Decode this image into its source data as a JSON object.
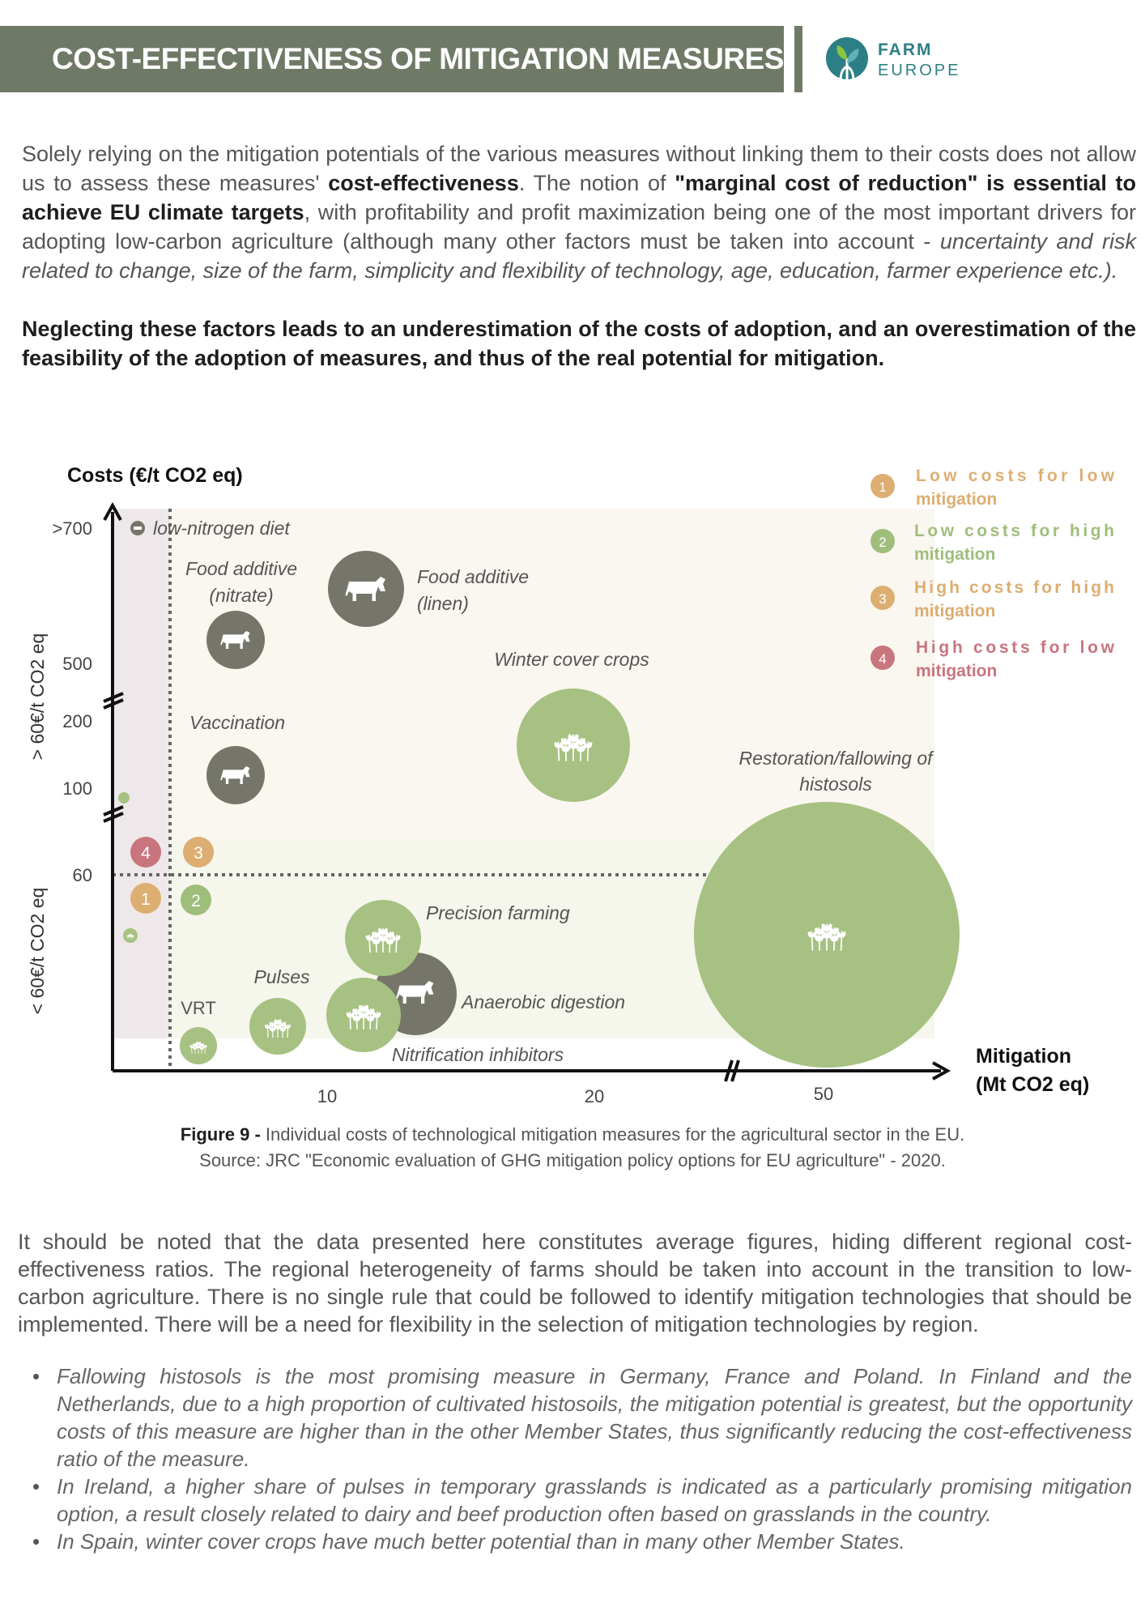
{
  "header": {
    "title": "COST-EFFECTIVENESS OF MITIGATION MEASURES",
    "logo_word1": "FARM",
    "logo_word2": "EUROPE"
  },
  "intro": {
    "p1_a": "Solely relying on the mitigation potentials of the various measures without linking them to their costs does not allow us to assess these measures' ",
    "p1_b": "cost-effectiveness",
    "p1_c": ". The notion of ",
    "p1_d": "\"marginal cost of reduction\" is essential to achieve EU climate targets",
    "p1_e": ", with profitability and profit maximization being one of the most important drivers for adopting low-carbon agriculture (although many other factors must be taken into account - ",
    "p1_f": "uncertainty and risk related to change, size of the farm, simplicity and flexibility of technology, age, education, farmer experience etc.).",
    "p2": "Neglecting these factors leads to an underestimation of the costs of adoption, and an overestimation of the feasibility of the adoption of measures, and thus of the real potential for mitigation."
  },
  "chart_data": {
    "type": "scatter",
    "ylabel": "Costs (€/t CO2 eq)",
    "xlabel_line1": "Mitigation",
    "xlabel_line2": "(Mt CO2 eq)",
    "x_ticks": [
      "10",
      "20",
      "50"
    ],
    "y_ticks": [
      ">700",
      "500",
      "200",
      "100",
      "60"
    ],
    "y_band_high": "> 60€/t CO2 eq",
    "y_band_low": "< 60€/t CO2 eq",
    "legend": [
      {
        "num": "1",
        "line1": "Low costs for low",
        "line2": "mitigation",
        "color": "#dcae72"
      },
      {
        "num": "2",
        "line1": "Low costs for high",
        "line2": "mitigation",
        "color": "#9fbe7c"
      },
      {
        "num": "3",
        "line1": "High costs for high",
        "line2": "mitigation",
        "color": "#dcae72"
      },
      {
        "num": "4",
        "line1": "High costs for low",
        "line2": "mitigation",
        "color": "#c8757d"
      }
    ],
    "measures": [
      {
        "label": "low-nitrogen diet",
        "type": "livestock"
      },
      {
        "label1": "Food additive",
        "label2": "(nitrate)",
        "type": "livestock"
      },
      {
        "label1": "Food additive",
        "label2": "(linen)",
        "type": "livestock"
      },
      {
        "label": "Winter cover crops",
        "type": "crop"
      },
      {
        "label": "Vaccination",
        "type": "livestock"
      },
      {
        "label1": "Restoration/fallowing of",
        "label2": "histosols",
        "type": "crop"
      },
      {
        "label": "Precision farming",
        "type": "crop"
      },
      {
        "label": "Pulses",
        "type": "crop"
      },
      {
        "label": "VRT",
        "type": "crop"
      },
      {
        "label": "Anaerobic digestion",
        "type": "livestock"
      },
      {
        "label": "Nitrification inhibitors",
        "type": "crop"
      }
    ],
    "colors": {
      "crop": "#a6c181",
      "livestock": "#75756a",
      "low_band": "#f4f6ea",
      "high_band": "#faf6f0",
      "left_band": "#f0eaec"
    }
  },
  "caption": {
    "bold": "Figure 9 -",
    "text": " Individual costs of technological mitigation measures for the agricultural sector in the EU.",
    "source": "Source: JRC \"Economic evaluation of GHG mitigation policy options for EU agriculture\" - 2020."
  },
  "note": "It should be noted that the data presented here constitutes average figures, hiding different regional cost-effectiveness ratios. The regional heterogeneity of farms should be taken into account in the transition to low-carbon agriculture. There is no single rule that could be followed to identify mitigation technologies that should be implemented. There will be a need for flexibility in the selection of mitigation technologies by region.",
  "bullets": [
    "Fallowing histosols is the most promising measure in Germany, France and Poland. In Finland and the Netherlands, due to a high proportion of cultivated histosoils, the mitigation potential is greatest, but the opportunity costs of this measure are higher than in the other Member States, thus significantly reducing the cost-effectiveness ratio of the measure.",
    "In Ireland, a higher share of pulses in temporary grasslands is indicated as a particularly promising mitigation option, a result closely related to dairy and beef production often based on grasslands in the country.",
    "In Spain, winter cover crops have much better potential than in many other Member States."
  ]
}
